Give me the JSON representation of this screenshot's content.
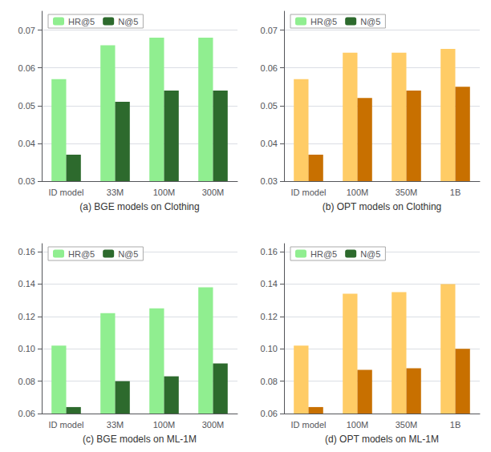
{
  "chart_data": [
    {
      "type": "bar",
      "xlabel": "(a) BGE models on Clothing",
      "categories": [
        "ID model",
        "33M",
        "100M",
        "300M"
      ],
      "series": [
        {
          "name": "HR@5",
          "color": "#90EE90",
          "values": [
            0.057,
            0.066,
            0.068,
            0.068
          ]
        },
        {
          "name": "N@5",
          "color": "#2D6A2D",
          "values": [
            0.037,
            0.051,
            0.054,
            0.054
          ]
        }
      ],
      "ylim": [
        0.03,
        0.075
      ],
      "yticks": [
        0.03,
        0.04,
        0.05,
        0.06,
        0.07
      ],
      "grid": true,
      "legend": "upper left"
    },
    {
      "type": "bar",
      "xlabel": "(b) OPT models on Clothing",
      "categories": [
        "ID model",
        "100M",
        "350M",
        "1B"
      ],
      "series": [
        {
          "name": "HR@5",
          "color": "#FFCC66",
          "values": [
            0.057,
            0.064,
            0.064,
            0.065
          ]
        },
        {
          "name": "N@5",
          "color": "#C87000",
          "values": [
            0.037,
            0.052,
            0.054,
            0.055
          ]
        }
      ],
      "ylim": [
        0.03,
        0.075
      ],
      "yticks": [
        0.03,
        0.04,
        0.05,
        0.06,
        0.07
      ],
      "grid": true,
      "legend": "upper left"
    },
    {
      "type": "bar",
      "xlabel": "(c) BGE models on ML-1M",
      "categories": [
        "ID model",
        "33M",
        "100M",
        "300M"
      ],
      "series": [
        {
          "name": "HR@5",
          "color": "#90EE90",
          "values": [
            0.102,
            0.122,
            0.125,
            0.138
          ]
        },
        {
          "name": "N@5",
          "color": "#2D6A2D",
          "values": [
            0.064,
            0.08,
            0.083,
            0.091
          ]
        }
      ],
      "ylim": [
        0.06,
        0.165
      ],
      "yticks": [
        0.06,
        0.08,
        {
          "value": 0.1,
          "label": "0.10"
        },
        0.12,
        0.14,
        0.16
      ],
      "grid": true,
      "legend": "upper left"
    },
    {
      "type": "bar",
      "xlabel": "(d) OPT models on ML-1M",
      "categories": [
        "ID model",
        "100M",
        "350M",
        "1B"
      ],
      "series": [
        {
          "name": "HR@5",
          "color": "#FFCC66",
          "values": [
            0.102,
            0.134,
            0.135,
            0.14
          ]
        },
        {
          "name": "N@5",
          "color": "#C87000",
          "values": [
            0.064,
            0.087,
            0.088,
            0.1
          ]
        }
      ],
      "ylim": [
        0.06,
        0.165
      ],
      "yticks": [
        0.06,
        0.08,
        {
          "value": 0.1,
          "label": "0.10"
        },
        0.12,
        0.14,
        0.16
      ],
      "grid": true,
      "legend": "upper left"
    }
  ]
}
